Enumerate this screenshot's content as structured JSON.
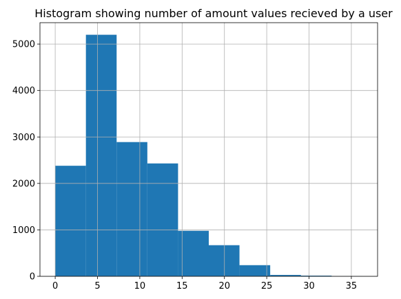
{
  "chart_data": {
    "type": "bar",
    "title": "Histogram showing number of amount values recieved by a user",
    "xlabel": "",
    "ylabel": "",
    "bin_edges": [
      0,
      3.63,
      7.26,
      10.89,
      14.52,
      18.15,
      21.78,
      25.41,
      29.04,
      32.67,
      36.3
    ],
    "values": [
      2380,
      5200,
      2890,
      2430,
      980,
      670,
      240,
      30,
      15,
      5
    ],
    "xlim": [
      -1.8,
      38.1
    ],
    "ylim": [
      0,
      5460
    ],
    "x_ticks": [
      0,
      5,
      10,
      15,
      20,
      25,
      30,
      35
    ],
    "x_tick_labels": [
      "0",
      "5",
      "10",
      "15",
      "20",
      "25",
      "30",
      "35"
    ],
    "y_ticks": [
      0,
      1000,
      2000,
      3000,
      4000,
      5000
    ],
    "y_tick_labels": [
      "0",
      "1000",
      "2000",
      "3000",
      "4000",
      "5000"
    ],
    "grid": true,
    "colors": {
      "bar": "#1f77b4",
      "grid": "#b0b0b0",
      "axes": "#000000"
    }
  }
}
